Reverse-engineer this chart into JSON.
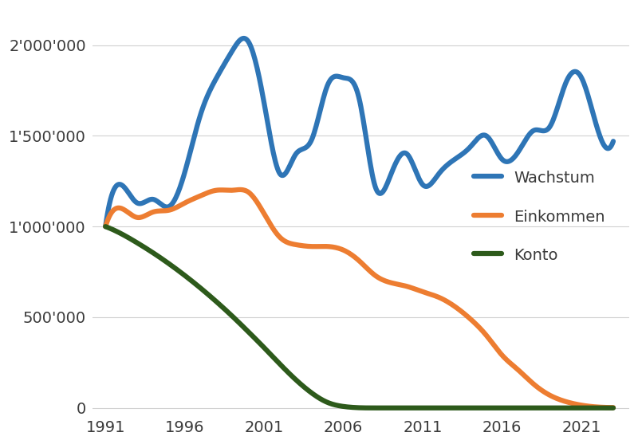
{
  "years": [
    1991,
    1992,
    1993,
    1994,
    1995,
    1996,
    1997,
    1998,
    1999,
    2000,
    2001,
    2002,
    2003,
    2004,
    2005,
    2006,
    2007,
    2008,
    2009,
    2010,
    2011,
    2012,
    2013,
    2014,
    2015,
    2016,
    2017,
    2018,
    2019,
    2020,
    2021,
    2022,
    2023
  ],
  "wachstum": [
    1000000,
    1230000,
    1130000,
    1150000,
    1110000,
    1300000,
    1620000,
    1820000,
    1970000,
    2020000,
    1680000,
    1290000,
    1400000,
    1480000,
    1780000,
    1820000,
    1700000,
    1220000,
    1290000,
    1400000,
    1230000,
    1290000,
    1370000,
    1440000,
    1500000,
    1370000,
    1410000,
    1530000,
    1550000,
    1790000,
    1820000,
    1540000,
    1470000
  ],
  "einkommen": [
    1000000,
    1100000,
    1050000,
    1080000,
    1090000,
    1130000,
    1170000,
    1200000,
    1200000,
    1190000,
    1070000,
    940000,
    900000,
    890000,
    890000,
    870000,
    810000,
    730000,
    690000,
    670000,
    640000,
    610000,
    560000,
    490000,
    400000,
    290000,
    210000,
    130000,
    70000,
    35000,
    15000,
    5000,
    2000
  ],
  "konto": [
    1000000,
    960000,
    910000,
    855000,
    795000,
    730000,
    660000,
    585000,
    505000,
    420000,
    332000,
    241000,
    155000,
    82000,
    30000,
    8000,
    1000,
    0,
    0,
    0,
    0,
    0,
    0,
    0,
    0,
    0,
    0,
    0,
    0,
    0,
    0,
    0,
    0
  ],
  "wachstum_color": "#2e75b6",
  "einkommen_color": "#ed7d31",
  "konto_color": "#2d5a1b",
  "background_color": "#ffffff",
  "grid_color": "#d0d0d0",
  "line_width": 4.5,
  "yticks": [
    0,
    500000,
    1000000,
    1500000,
    2000000
  ],
  "ytick_labels": [
    "0",
    "500'000",
    "1'000'000",
    "1'500'000",
    "2'000'000"
  ],
  "xticks": [
    1991,
    1996,
    2001,
    2006,
    2011,
    2016,
    2021
  ],
  "legend_labels": [
    "Wachstum",
    "Einkommen",
    "Konto"
  ],
  "text_color": "#3a3a3a",
  "font_size": 14
}
